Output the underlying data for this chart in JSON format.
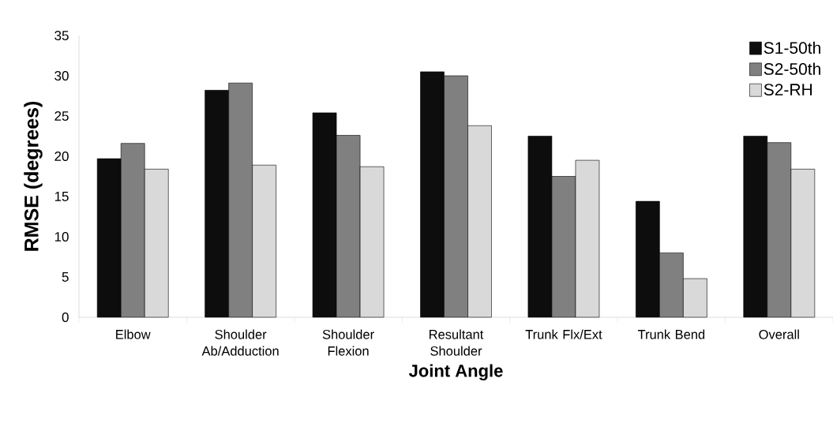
{
  "chart_data": {
    "type": "bar",
    "xlabel": "Joint Angle",
    "ylabel": "RMSE (degrees)",
    "categories": [
      "Elbow",
      "Shoulder Ab/Adduction",
      "Shoulder Flexion",
      "Resultant Shoulder",
      "Trunk Flx/Ext",
      "Trunk Bend",
      "Overall"
    ],
    "series": [
      {
        "name": "S1-50th",
        "color": "#0d0d0d",
        "values": [
          19.7,
          28.2,
          25.4,
          30.5,
          22.5,
          14.4,
          22.5
        ]
      },
      {
        "name": "S2-50th",
        "color": "#808080",
        "values": [
          21.6,
          29.1,
          22.6,
          30.0,
          17.5,
          8.0,
          21.7
        ]
      },
      {
        "name": "S2-RH",
        "color": "#d9d9d9",
        "values": [
          18.4,
          18.9,
          18.7,
          23.8,
          19.5,
          4.8,
          18.4
        ]
      }
    ],
    "ylim": [
      0,
      35
    ],
    "yticks": [
      0,
      5,
      10,
      15,
      20,
      25,
      30,
      35
    ],
    "legend": "top right",
    "grid": false
  }
}
